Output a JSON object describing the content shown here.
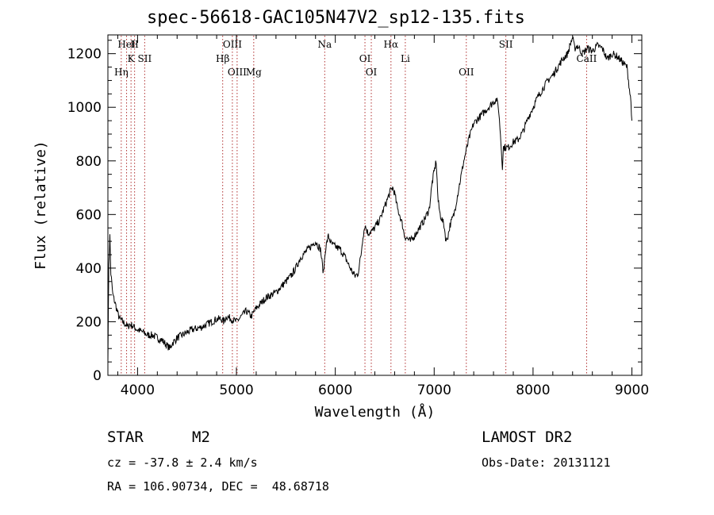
{
  "chart_data": {
    "type": "line",
    "title": "spec-56618-GAC105N47V2_sp12-135.fits",
    "xlabel": "Wavelength (Å)",
    "ylabel": "Flux (relative)",
    "xlim": [
      3700,
      9100
    ],
    "ylim": [
      0,
      1270
    ],
    "xticks": [
      4000,
      5000,
      6000,
      7000,
      8000,
      9000
    ],
    "yticks": [
      0,
      200,
      400,
      600,
      800,
      1000,
      1200
    ],
    "grid": false,
    "series": [
      {
        "x": [
          3700,
          3710,
          3720,
          3730,
          3750,
          3780,
          3800,
          3820,
          3850,
          3880,
          3900,
          3920,
          3950,
          3980,
          4000,
          4030,
          4060,
          4100,
          4150,
          4200,
          4250,
          4300,
          4330,
          4350,
          4380,
          4400,
          4450,
          4500,
          4550,
          4600,
          4650,
          4700,
          4750,
          4800,
          4850,
          4870,
          4900,
          4950,
          5000,
          5050,
          5100,
          5150,
          5200,
          5250,
          5300,
          5350,
          5400,
          5450,
          5500,
          5550,
          5600,
          5650,
          5700,
          5750,
          5800,
          5850,
          5880,
          5900,
          5930,
          5960,
          6000,
          6050,
          6100,
          6150,
          6200,
          6230,
          6260,
          6280,
          6300,
          6330,
          6380,
          6450,
          6500,
          6530,
          6560,
          6580,
          6600,
          6630,
          6650,
          6680,
          6700,
          6730,
          6760,
          6800,
          6850,
          6900,
          6950,
          6980,
          7000,
          7020,
          7040,
          7060,
          7080,
          7100,
          7120,
          7140,
          7160,
          7200,
          7250,
          7300,
          7350,
          7400,
          7450,
          7500,
          7550,
          7600,
          7630,
          7650,
          7670,
          7690,
          7700,
          7750,
          7800,
          7850,
          7900,
          7950,
          8000,
          8050,
          8100,
          8150,
          8200,
          8250,
          8300,
          8350,
          8380,
          8400,
          8420,
          8450,
          8500,
          8550,
          8600,
          8650,
          8700,
          8750,
          8800,
          8850,
          8900,
          8950,
          8990,
          9000
        ],
        "y": [
          60,
          420,
          520,
          380,
          300,
          260,
          230,
          210,
          200,
          190,
          180,
          190,
          185,
          175,
          170,
          165,
          160,
          150,
          150,
          140,
          130,
          110,
          100,
          120,
          130,
          140,
          150,
          160,
          170,
          175,
          180,
          190,
          200,
          210,
          210,
          200,
          220,
          210,
          200,
          220,
          240,
          220,
          250,
          270,
          290,
          300,
          310,
          330,
          350,
          370,
          400,
          440,
          460,
          480,
          500,
          470,
          380,
          470,
          520,
          490,
          480,
          470,
          440,
          400,
          370,
          380,
          450,
          520,
          560,
          530,
          540,
          580,
          630,
          660,
          690,
          700,
          680,
          620,
          600,
          560,
          520,
          510,
          500,
          520,
          550,
          580,
          620,
          720,
          760,
          800,
          650,
          600,
          580,
          560,
          500,
          520,
          560,
          600,
          700,
          800,
          880,
          940,
          960,
          980,
          1000,
          1020,
          1030,
          1000,
          900,
          780,
          850,
          850,
          870,
          880,
          910,
          960,
          1000,
          1040,
          1070,
          1100,
          1120,
          1150,
          1180,
          1200,
          1240,
          1260,
          1220,
          1230,
          1200,
          1220,
          1210,
          1230,
          1220,
          1180,
          1200,
          1190,
          1170,
          1150,
          1020,
          950
        ]
      }
    ],
    "lines": [
      {
        "label": "HeI",
        "wave": 3889
      },
      {
        "label": "SII",
        "wave": 4072
      },
      {
        "label": "Hη",
        "wave": 3835
      },
      {
        "label": "H",
        "wave": 3970
      },
      {
        "label": "K",
        "wave": 3934
      },
      {
        "label": "OIII",
        "wave": 5007
      },
      {
        "label": "OIII",
        "wave": 4959
      },
      {
        "label": "Hβ",
        "wave": 4861
      },
      {
        "label": "Mg",
        "wave": 5175
      },
      {
        "label": "Na",
        "wave": 5893
      },
      {
        "label": "OI",
        "wave": 6300
      },
      {
        "label": "OI",
        "wave": 6364
      },
      {
        "label": "Hα",
        "wave": 6563
      },
      {
        "label": "Li",
        "wave": 6708
      },
      {
        "label": "OII",
        "wave": 7325
      },
      {
        "label": "SII",
        "wave": 7725
      },
      {
        "label": "CaII",
        "wave": 8542
      }
    ]
  },
  "info": {
    "class": "STAR",
    "subclass": "M2",
    "survey": "LAMOST DR2",
    "cz": "cz = -37.8 ± 2.4 km/s",
    "obsdate": "Obs-Date: 20131121",
    "radec": "RA = 106.90734, DEC =  48.68718"
  }
}
